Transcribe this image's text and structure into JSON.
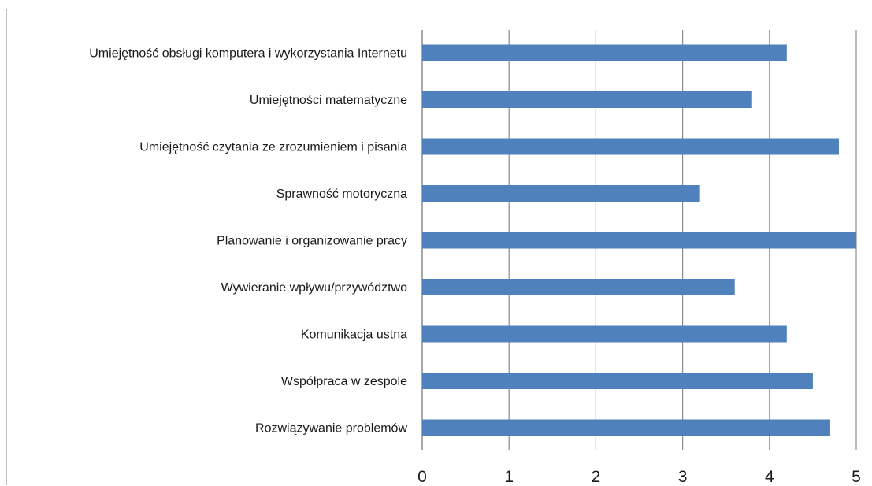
{
  "chart_data": {
    "type": "bar",
    "orientation": "horizontal",
    "categories": [
      "Umiejętność obsługi komputera i wykorzystania Internetu",
      "Umiejętności matematyczne",
      "Umiejętność czytania ze zrozumieniem i pisania",
      "Sprawność motoryczna",
      "Planowanie i organizowanie pracy",
      "Wywieranie wpływu/przywództwo",
      "Komunikacja ustna",
      "Współpraca w zespole",
      "Rozwiązywanie problemów"
    ],
    "values": [
      4.2,
      3.8,
      4.8,
      3.2,
      5.0,
      3.6,
      4.2,
      4.5,
      4.7
    ],
    "title": "",
    "xlabel": "",
    "ylabel": "",
    "xlim": [
      0,
      5
    ],
    "xticks": [
      "0",
      "1",
      "2",
      "3",
      "4",
      "5"
    ],
    "grid": "vertical",
    "legend": "none",
    "bar_color": "#4f81bd",
    "grid_color": "#8c8c8c"
  }
}
